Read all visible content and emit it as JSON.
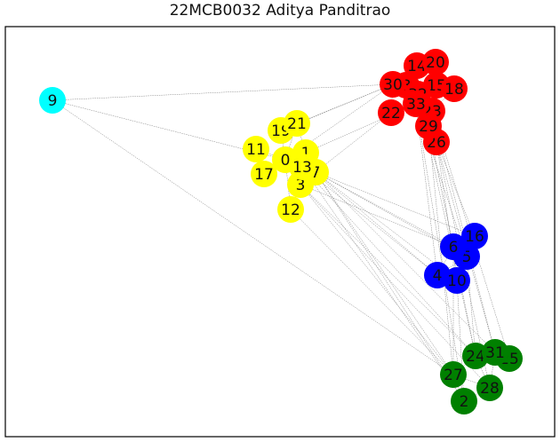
{
  "title": "22MCB0032 Aditya Panditrao",
  "colors": {
    "red": "#ff0000",
    "yellow": "#ffff00",
    "blue": "#0000ff",
    "green": "#008000",
    "cyan": "#00ffff",
    "edge": "#7f7f7f",
    "frame": "#000000"
  },
  "nodes": [
    {
      "id": "0",
      "group": "yellow"
    },
    {
      "id": "1",
      "group": "yellow"
    },
    {
      "id": "2",
      "group": "green"
    },
    {
      "id": "3",
      "group": "yellow"
    },
    {
      "id": "4",
      "group": "blue"
    },
    {
      "id": "5",
      "group": "blue"
    },
    {
      "id": "6",
      "group": "blue"
    },
    {
      "id": "7",
      "group": "yellow"
    },
    {
      "id": "8",
      "group": "red"
    },
    {
      "id": "9",
      "group": "cyan"
    },
    {
      "id": "10",
      "group": "blue"
    },
    {
      "id": "11",
      "group": "yellow"
    },
    {
      "id": "12",
      "group": "yellow"
    },
    {
      "id": "13",
      "group": "yellow"
    },
    {
      "id": "14",
      "group": "red"
    },
    {
      "id": "15",
      "group": "red"
    },
    {
      "id": "16",
      "group": "blue"
    },
    {
      "id": "17",
      "group": "yellow"
    },
    {
      "id": "18",
      "group": "red"
    },
    {
      "id": "19",
      "group": "yellow"
    },
    {
      "id": "20",
      "group": "red"
    },
    {
      "id": "21",
      "group": "yellow"
    },
    {
      "id": "22",
      "group": "red"
    },
    {
      "id": "23",
      "group": "red"
    },
    {
      "id": "24",
      "group": "green"
    },
    {
      "id": "25",
      "group": "green"
    },
    {
      "id": "26",
      "group": "red"
    },
    {
      "id": "27",
      "group": "green"
    },
    {
      "id": "28",
      "group": "green"
    },
    {
      "id": "29",
      "group": "red"
    },
    {
      "id": "30",
      "group": "red"
    },
    {
      "id": "31",
      "group": "green"
    },
    {
      "id": "32",
      "group": "red"
    },
    {
      "id": "33",
      "group": "red"
    }
  ],
  "edges": [
    [
      "9",
      "30"
    ],
    [
      "9",
      "27"
    ],
    [
      "9",
      "0"
    ],
    [
      "0",
      "1"
    ],
    [
      "0",
      "13"
    ],
    [
      "0",
      "3"
    ],
    [
      "0",
      "11"
    ],
    [
      "0",
      "17"
    ],
    [
      "0",
      "19"
    ],
    [
      "0",
      "21"
    ],
    [
      "0",
      "12"
    ],
    [
      "1",
      "13"
    ],
    [
      "1",
      "7"
    ],
    [
      "1",
      "21"
    ],
    [
      "3",
      "7"
    ],
    [
      "3",
      "12"
    ],
    [
      "7",
      "13"
    ],
    [
      "11",
      "17"
    ],
    [
      "19",
      "21"
    ],
    [
      "0",
      "30"
    ],
    [
      "7",
      "22"
    ],
    [
      "1",
      "33"
    ],
    [
      "19",
      "30"
    ],
    [
      "21",
      "30"
    ],
    [
      "30",
      "8"
    ],
    [
      "8",
      "32"
    ],
    [
      "32",
      "33"
    ],
    [
      "14",
      "20"
    ],
    [
      "20",
      "15"
    ],
    [
      "15",
      "18"
    ],
    [
      "8",
      "14"
    ],
    [
      "33",
      "23"
    ],
    [
      "23",
      "29"
    ],
    [
      "29",
      "26"
    ],
    [
      "22",
      "32"
    ],
    [
      "30",
      "22"
    ],
    [
      "15",
      "32"
    ],
    [
      "18",
      "23"
    ],
    [
      "7",
      "4"
    ],
    [
      "7",
      "6"
    ],
    [
      "7",
      "5"
    ],
    [
      "7",
      "10"
    ],
    [
      "13",
      "4"
    ],
    [
      "7",
      "16"
    ],
    [
      "3",
      "6"
    ],
    [
      "7",
      "27"
    ],
    [
      "7",
      "2"
    ],
    [
      "3",
      "27"
    ],
    [
      "3",
      "24"
    ],
    [
      "13",
      "24"
    ],
    [
      "7",
      "31"
    ],
    [
      "12",
      "27"
    ],
    [
      "3",
      "28"
    ],
    [
      "13",
      "2"
    ],
    [
      "6",
      "16"
    ],
    [
      "6",
      "5"
    ],
    [
      "5",
      "4"
    ],
    [
      "4",
      "10"
    ],
    [
      "10",
      "5"
    ],
    [
      "6",
      "4"
    ],
    [
      "33",
      "5"
    ],
    [
      "29",
      "6"
    ],
    [
      "26",
      "16"
    ],
    [
      "23",
      "10"
    ],
    [
      "33",
      "4"
    ],
    [
      "29",
      "24"
    ],
    [
      "26",
      "31"
    ],
    [
      "23",
      "25"
    ],
    [
      "29",
      "27"
    ],
    [
      "26",
      "28"
    ],
    [
      "33",
      "2"
    ],
    [
      "32",
      "24"
    ],
    [
      "23",
      "31"
    ],
    [
      "5",
      "24"
    ],
    [
      "6",
      "27"
    ],
    [
      "10",
      "2"
    ],
    [
      "24",
      "31"
    ],
    [
      "31",
      "25"
    ],
    [
      "24",
      "27"
    ],
    [
      "27",
      "2"
    ],
    [
      "2",
      "28"
    ],
    [
      "28",
      "31"
    ],
    [
      "24",
      "28"
    ],
    [
      "27",
      "28"
    ]
  ]
}
